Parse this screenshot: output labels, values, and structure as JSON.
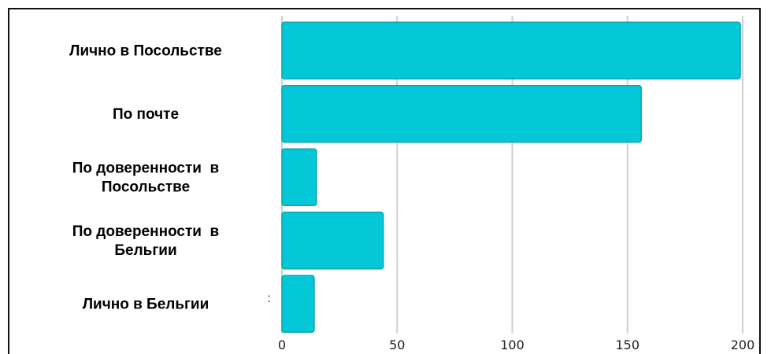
{
  "chart_data": {
    "type": "bar",
    "orientation": "horizontal",
    "categories": [
      [
        "Лично в Посольстве"
      ],
      [
        "По почте"
      ],
      [
        "По доверенности  в",
        "Посольстве"
      ],
      [
        "По доверенности  в",
        "Бельгии"
      ],
      [
        "Лично в Бельгии"
      ]
    ],
    "values": [
      199,
      156,
      15,
      44,
      14
    ],
    "xticks": [
      "0",
      "50",
      "100",
      "150",
      "200"
    ],
    "xlim": [
      0,
      200
    ],
    "grid": "vertical",
    "legend": "none",
    "title": "",
    "xlabel": "",
    "ylabel": ""
  },
  "stray_mark": ":",
  "colors": {
    "bar_fill": "#04c8d8",
    "bar_stroke": "#0aa6b4",
    "grid": "#cfcfcf",
    "frame": "#111111"
  }
}
